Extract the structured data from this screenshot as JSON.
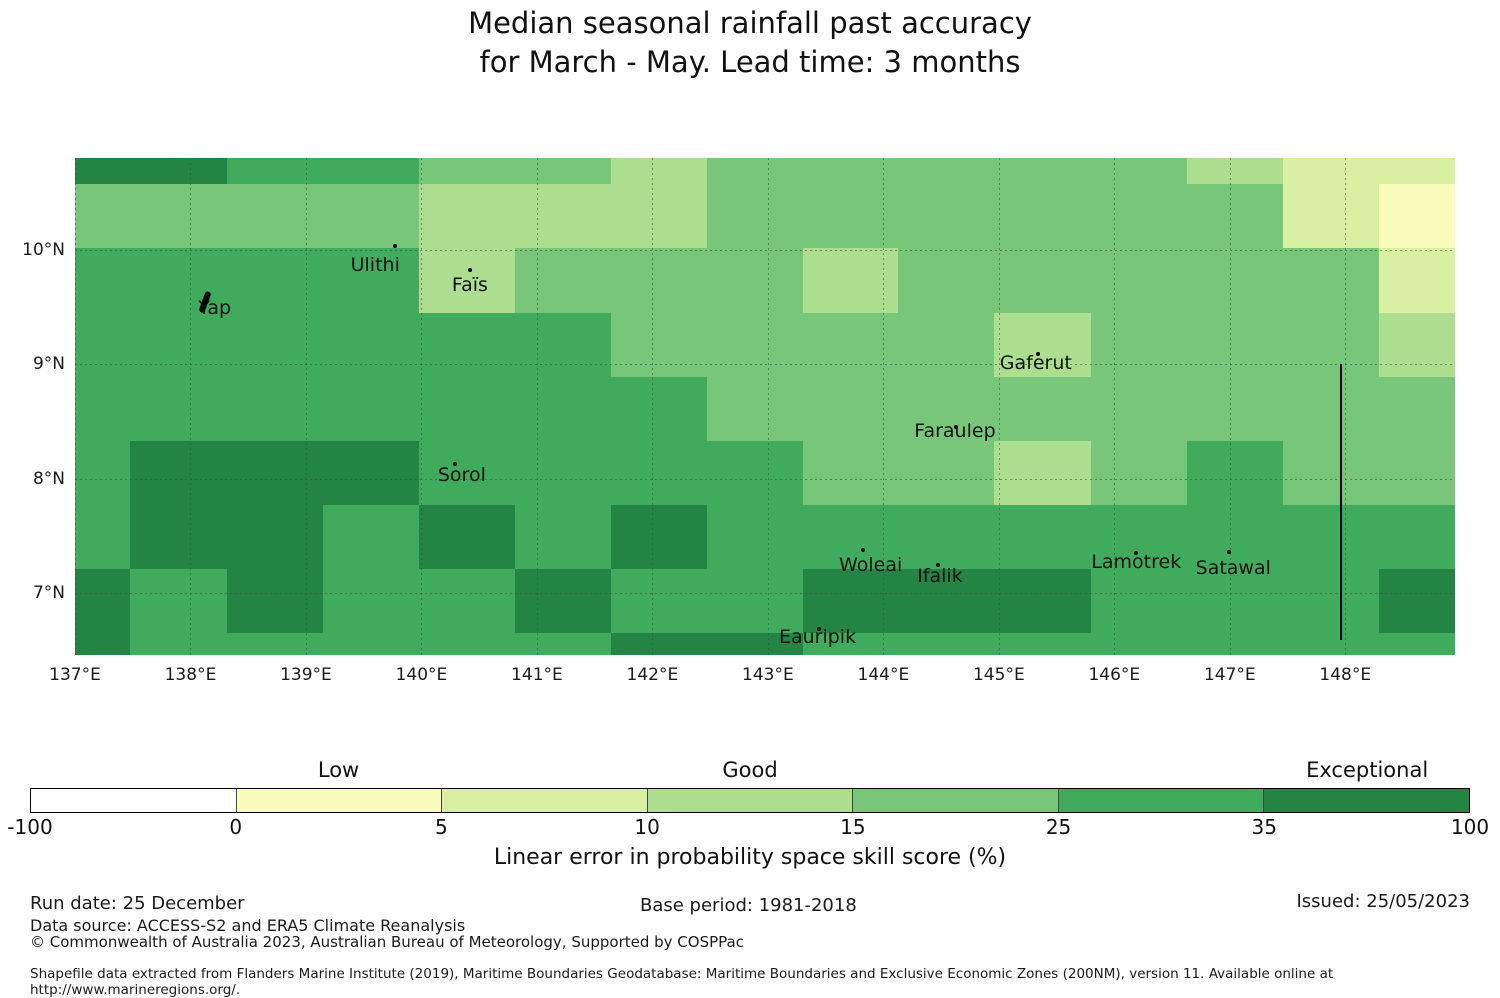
{
  "title": {
    "line1": "Median seasonal rainfall past accuracy",
    "line2": "for March - May. Lead time: 3 months"
  },
  "footer": {
    "run_date": "Run date: 25 December",
    "data_source": "Data source: ACCESS-S2 and ERA5 Climate Reanalysis",
    "copyright": "© Commonwealth of Australia 2023, Australian Bureau of Meteorology, Supported by COSPPac",
    "base_period": "Base period: 1981-2018",
    "issued": "Issued: 25/05/2023",
    "shapefile_note": "Shapefile data extracted from Flanders Marine Institute (2019), Maritime Boundaries Geodatabase: Maritime Boundaries and Exclusive Economic Zones (200NM), version 11. Available online at http://www.marineregions.org/."
  },
  "chart_data": {
    "type": "heatmap",
    "title": "Median seasonal rainfall past accuracy for March - May. Lead time: 3 months",
    "xlabel": "Linear error in probability space skill score (%)",
    "map_extent": {
      "lon_min": 137.0,
      "lon_max": 148.95,
      "lat_min": 6.46,
      "lat_max": 10.8
    },
    "x_ticks": [
      {
        "label": "137°E",
        "lon": 137
      },
      {
        "label": "138°E",
        "lon": 138
      },
      {
        "label": "139°E",
        "lon": 139
      },
      {
        "label": "140°E",
        "lon": 140
      },
      {
        "label": "141°E",
        "lon": 141
      },
      {
        "label": "142°E",
        "lon": 142
      },
      {
        "label": "143°E",
        "lon": 143
      },
      {
        "label": "144°E",
        "lon": 144
      },
      {
        "label": "145°E",
        "lon": 145
      },
      {
        "label": "146°E",
        "lon": 146
      },
      {
        "label": "147°E",
        "lon": 147
      },
      {
        "label": "148°E",
        "lon": 148
      }
    ],
    "y_ticks": [
      {
        "label": "10°N",
        "lat": 10
      },
      {
        "label": "9°N",
        "lat": 9
      },
      {
        "label": "8°N",
        "lat": 8
      },
      {
        "label": "7°N",
        "lat": 7
      }
    ],
    "palette": {
      "W": {
        "color": "#ffffff",
        "skill_range": "-100 to 0",
        "category": "Low"
      },
      "Y1": {
        "color": "#f9fcba",
        "skill_range": "0 to 5",
        "category": "Low"
      },
      "Y2": {
        "color": "#d9f0a3",
        "skill_range": "5 to 10",
        "category": "Low-Good"
      },
      "G1": {
        "color": "#addd8e",
        "skill_range": "10 to 15",
        "category": "Good"
      },
      "G2": {
        "color": "#78c679",
        "skill_range": "15 to 25",
        "category": "Good"
      },
      "G3": {
        "color": "#41ab5d",
        "skill_range": "25 to 35",
        "category": "Good-Exceptional"
      },
      "G4": {
        "color": "#238443",
        "skill_range": "35 to 100",
        "category": "Exceptional"
      }
    },
    "grid": {
      "lon_edges": [
        137.0,
        137.48,
        138.32,
        139.15,
        139.98,
        140.81,
        141.64,
        142.47,
        143.3,
        144.13,
        144.96,
        145.8,
        146.63,
        147.46,
        148.29,
        148.95
      ],
      "lat_edges": [
        10.8,
        10.57,
        10.01,
        9.45,
        8.89,
        8.33,
        7.77,
        7.21,
        6.65,
        6.46
      ],
      "cells": [
        [
          "G4",
          "G4",
          "G3",
          "G3",
          "G2",
          "G2",
          "G1",
          "G2",
          "G2",
          "G2",
          "G2",
          "G2",
          "G1",
          "Y2",
          "Y2"
        ],
        [
          "G2",
          "G2",
          "G2",
          "G2",
          "G1",
          "G1",
          "G1",
          "G2",
          "G2",
          "G2",
          "G2",
          "G2",
          "G2",
          "Y2",
          "Y1"
        ],
        [
          "G3",
          "G3",
          "G3",
          "G3",
          "G1",
          "G2",
          "G2",
          "G2",
          "G1",
          "G2",
          "G2",
          "G2",
          "G2",
          "G2",
          "Y2"
        ],
        [
          "G3",
          "G3",
          "G3",
          "G3",
          "G3",
          "G3",
          "G2",
          "G2",
          "G2",
          "G2",
          "G1",
          "G2",
          "G2",
          "G2",
          "G1"
        ],
        [
          "G3",
          "G3",
          "G3",
          "G3",
          "G3",
          "G3",
          "G3",
          "G2",
          "G2",
          "G2",
          "G2",
          "G2",
          "G2",
          "G2",
          "G2"
        ],
        [
          "G3",
          "G4",
          "G4",
          "G4",
          "G3",
          "G3",
          "G3",
          "G3",
          "G2",
          "G2",
          "G1",
          "G2",
          "G3",
          "G2",
          "G2"
        ],
        [
          "G3",
          "G4",
          "G4",
          "G3",
          "G4",
          "G3",
          "G4",
          "G3",
          "G3",
          "G3",
          "G3",
          "G3",
          "G3",
          "G3",
          "G3"
        ],
        [
          "G4",
          "G3",
          "G4",
          "G3",
          "G3",
          "G4",
          "G3",
          "G3",
          "G4",
          "G4",
          "G4",
          "G3",
          "G3",
          "G3",
          "G4"
        ],
        [
          "G4",
          "G3",
          "G3",
          "G3",
          "G3",
          "G3",
          "G4",
          "G4",
          "G3",
          "G3",
          "G3",
          "G3",
          "G3",
          "G3",
          "G3"
        ]
      ]
    },
    "islands": [
      {
        "name": "Ulithi",
        "label_lon": 139.6,
        "label_lat": 9.87,
        "marker_lon": 139.77,
        "marker_lat": 10.03
      },
      {
        "name": "Faïs",
        "label_lon": 140.42,
        "label_lat": 9.69,
        "marker_lon": 140.42,
        "marker_lat": 9.82
      },
      {
        "name": "Yap",
        "label_lon": 138.21,
        "label_lat": 9.49,
        "marker_lon": 138.13,
        "marker_lat": 9.54,
        "marker_style": "yap-shape"
      },
      {
        "name": "Gaferut",
        "label_lon": 145.32,
        "label_lat": 9.01,
        "marker_lon": 145.34,
        "marker_lat": 9.09
      },
      {
        "name": "Faraulep",
        "label_lon": 144.62,
        "label_lat": 8.42,
        "marker_lon": 144.63,
        "marker_lat": 8.45
      },
      {
        "name": "Sorol",
        "label_lon": 140.35,
        "label_lat": 8.03,
        "marker_lon": 140.29,
        "marker_lat": 8.13
      },
      {
        "name": "Woleai",
        "label_lon": 143.89,
        "label_lat": 7.25,
        "marker_lon": 143.82,
        "marker_lat": 7.38
      },
      {
        "name": "Ifalik",
        "label_lon": 144.49,
        "label_lat": 7.15,
        "marker_lon": 144.47,
        "marker_lat": 7.25
      },
      {
        "name": "Lamotrek",
        "label_lon": 146.19,
        "label_lat": 7.27,
        "marker_lon": 146.19,
        "marker_lat": 7.35
      },
      {
        "name": "Satawal",
        "label_lon": 147.03,
        "label_lat": 7.22,
        "marker_lon": 146.99,
        "marker_lat": 7.36
      },
      {
        "name": "Eauripik",
        "label_lon": 143.43,
        "label_lat": 6.62,
        "marker_lon": 143.44,
        "marker_lat": 6.69
      }
    ],
    "boundary_line": {
      "lon": 147.95,
      "lat_top": 9.0,
      "lat_bottom": 6.59
    },
    "colorbar": {
      "tick_labels": [
        "-100",
        "0",
        "5",
        "10",
        "15",
        "25",
        "35",
        "100"
      ],
      "segment_colors": [
        "#ffffff",
        "#f9fcba",
        "#d9f0a3",
        "#addd8e",
        "#78c679",
        "#41ab5d",
        "#238443"
      ],
      "categories": [
        {
          "label": "Low",
          "segment_index": 1
        },
        {
          "label": "Good",
          "segment_index": 3
        },
        {
          "label": "Exceptional",
          "segment_index": 6
        }
      ],
      "xlabel": "Linear error in probability space skill score (%)"
    }
  }
}
